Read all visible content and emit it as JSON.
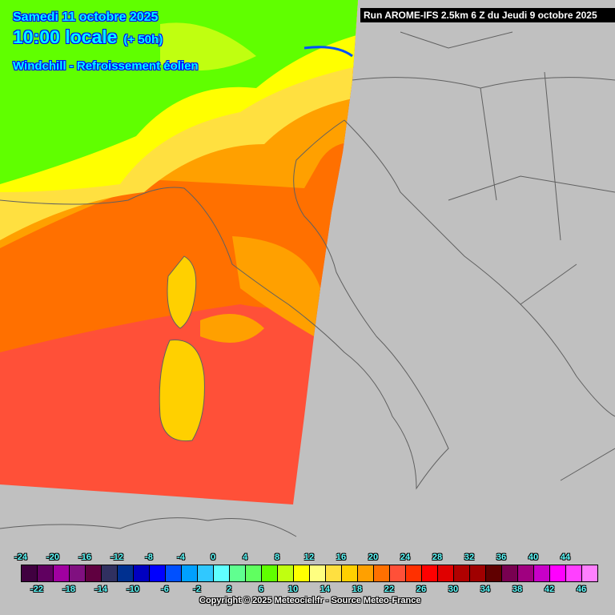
{
  "header": {
    "date": "Samedi 11 octobre 2025",
    "time": "10:00 locale",
    "lead": "(+ 50h)",
    "parameter": "Windchill - Refroissement éolien",
    "run": "Run AROME-IFS 2.5km 6 Z du Jeudi 9 octobre 2025"
  },
  "legend": {
    "values": [
      -24,
      -22,
      -20,
      -18,
      -16,
      -14,
      -12,
      -10,
      -8,
      -6,
      -4,
      -2,
      0,
      2,
      4,
      6,
      8,
      10,
      12,
      14,
      16,
      18,
      20,
      22,
      24,
      26,
      28,
      30,
      32,
      34,
      36,
      38,
      40,
      42,
      44,
      46
    ],
    "colors": [
      "#400040",
      "#600060",
      "#a000a0",
      "#801080",
      "#600040",
      "#303060",
      "#003090",
      "#0000c0",
      "#0000ff",
      "#0050ff",
      "#00a0ff",
      "#30c8ff",
      "#60ffff",
      "#60ff90",
      "#60ff60",
      "#60ff00",
      "#c0ff10",
      "#ffff00",
      "#ffff80",
      "#ffe040",
      "#ffd000",
      "#ffa000",
      "#ff7000",
      "#ff5038",
      "#ff3000",
      "#ff0000",
      "#e00000",
      "#b00000",
      "#a00000",
      "#600000",
      "#780050",
      "#a00080",
      "#c800c8",
      "#ff00ff",
      "#ff40ff",
      "#ff80ff"
    ]
  },
  "footer": {
    "copyright": "Copyright © 2025 Meteociel.fr - Source Meteo-France"
  },
  "map": {
    "background_color": "#c0c0c0",
    "border_color": "#707070"
  }
}
